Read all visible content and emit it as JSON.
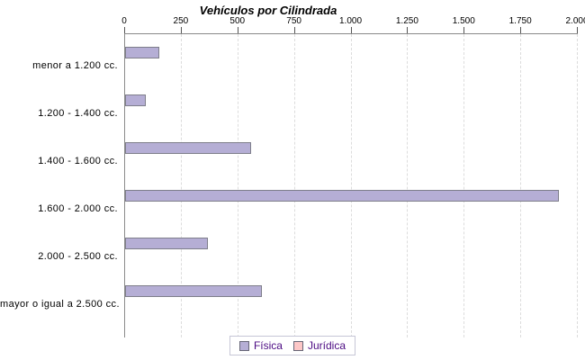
{
  "chart_data": {
    "type": "bar",
    "orientation": "horizontal",
    "title": "Vehículos por Cilindrada",
    "categories": [
      "menor a 1.200 cc.",
      "1.200 - 1.400 cc.",
      "1.400 - 1.600 cc.",
      "1.600 - 2.000 cc.",
      "2.000 - 2.500 cc.",
      "mayor o igual a 2.500 cc."
    ],
    "series": [
      {
        "name": "Física",
        "color": "#b5aed5",
        "border_color": "#7e7e8a",
        "values": [
          150,
          90,
          555,
          1915,
          365,
          605
        ]
      },
      {
        "name": "Jurídica",
        "color": "#fdc7c7",
        "border_color": "#7e7e8a",
        "values": [
          0,
          0,
          0,
          0,
          0,
          0
        ]
      }
    ],
    "xlim": [
      0,
      2000
    ],
    "x_ticks": [
      "0",
      "250",
      "500",
      "750",
      "1.000",
      "1.250",
      "1.500",
      "1.750",
      "2.000"
    ],
    "grid": "vertical-dashed",
    "axis_color": "#8a8a8a",
    "gridline_color": "#dcdcdc",
    "legend_position": "bottom",
    "legend_text_color": "#4b0a82"
  }
}
